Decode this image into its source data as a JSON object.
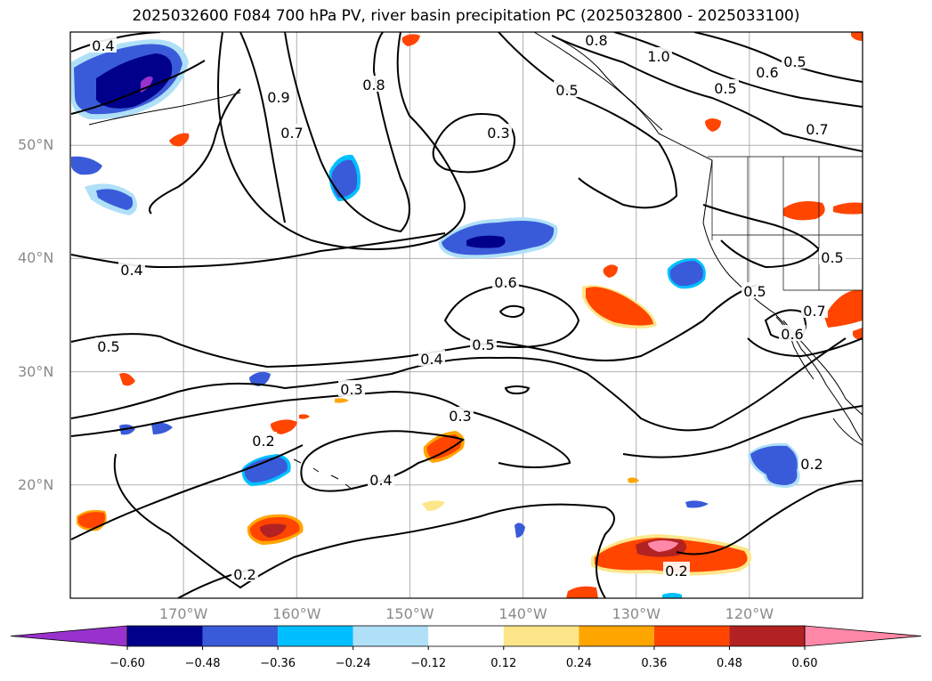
{
  "title": "2025032600 F084 700 hPa PV, river basin precipitation PC (2025032800 - 2025033100)",
  "map": {
    "lon_range": [
      -180,
      -110
    ],
    "lat_range": [
      10,
      60
    ],
    "lat_ticks": [
      {
        "value": 50,
        "label": "50°N"
      },
      {
        "value": 40,
        "label": "40°N"
      },
      {
        "value": 30,
        "label": "30°N"
      },
      {
        "value": 20,
        "label": "20°N"
      }
    ],
    "lon_ticks": [
      {
        "value": -170,
        "label": "170°W"
      },
      {
        "value": -160,
        "label": "160°W"
      },
      {
        "value": -150,
        "label": "150°W"
      },
      {
        "value": -140,
        "label": "140°W"
      },
      {
        "value": -130,
        "label": "130°W"
      },
      {
        "value": -120,
        "label": "120°W"
      }
    ],
    "contour_labels": [
      "0.4",
      "0.9",
      "0.7",
      "0.8",
      "0.8",
      "1.0",
      "0.6",
      "0.5",
      "0.5",
      "0.7",
      "0.7",
      "0.5",
      "0.4",
      "0.6",
      "0.5",
      "0.5",
      "0.5",
      "0.6",
      "0.5",
      "0.4",
      "0.3",
      "0.3",
      "0.2",
      "0.4",
      "0.2",
      "0.2",
      "0.2",
      "0.3"
    ]
  },
  "colorbar": {
    "colors": [
      "#9932cc",
      "#00008b",
      "#3a5bd9",
      "#00bfff",
      "#b0e0f8",
      "#ffffff",
      "#fde68a",
      "#ffa500",
      "#ff4500",
      "#b22222",
      "#ff88a8"
    ],
    "tick_labels": [
      "−0.60",
      "−0.48",
      "−0.36",
      "−0.24",
      "−0.12",
      "0.12",
      "0.24",
      "0.36",
      "0.48",
      "0.60"
    ]
  }
}
